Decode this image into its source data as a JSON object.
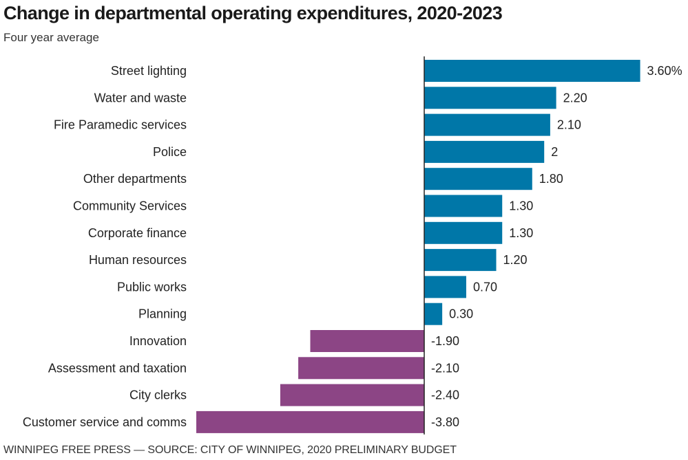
{
  "chart_data": {
    "type": "bar",
    "orientation": "horizontal",
    "title": "Change in departmental operating expenditures, 2020-2023",
    "subtitle": "Four year average",
    "xlabel": "",
    "ylabel": "",
    "unit": "%",
    "xlim": [
      -3.8,
      3.6
    ],
    "grid": false,
    "legend": "none",
    "categories": [
      "Street lighting",
      "Water and waste",
      "Fire Paramedic services",
      "Police",
      "Other departments",
      "Community Services",
      "Corporate finance",
      "Human resources",
      "Public works",
      "Planning",
      "Innovation",
      "Assessment and taxation",
      "City clerks",
      "Customer service and comms"
    ],
    "values": [
      3.6,
      2.2,
      2.1,
      2.0,
      1.8,
      1.3,
      1.3,
      1.2,
      0.7,
      0.3,
      -1.9,
      -2.1,
      -2.4,
      -3.8
    ],
    "value_labels": [
      "3.60%",
      "2.20",
      "2.10",
      "2",
      "1.80",
      "1.30",
      "1.30",
      "1.20",
      "0.70",
      "0.30",
      "-1.90",
      "-2.10",
      "-2.40",
      "-3.80"
    ],
    "colors": {
      "positive": "#0077a8",
      "negative": "#8c4585",
      "axis": "#222222"
    }
  },
  "footer": "WINNIPEG FREE PRESS — SOURCE: CITY OF WINNIPEG, 2020 PRELIMINARY BUDGET"
}
